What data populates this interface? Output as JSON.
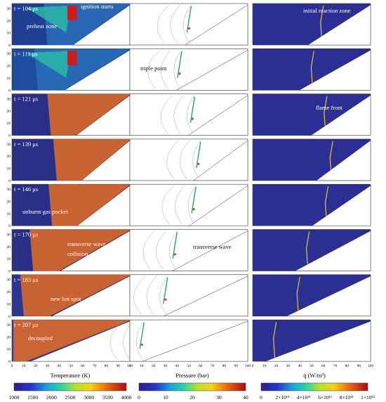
{
  "rows": [
    {
      "time": "t = 104 μs",
      "annotations": [
        {
          "col": 0,
          "text": "ignition starts"
        },
        {
          "col": 0,
          "text": "preheat zone"
        },
        {
          "col": 2,
          "text": "initial reaction zone"
        }
      ]
    },
    {
      "time": "t = 111 μs",
      "annotations": [
        {
          "col": 1,
          "text": "triple point"
        }
      ]
    },
    {
      "time": "t = 121 μs",
      "annotations": [
        {
          "col": 2,
          "text": "flame front"
        }
      ]
    },
    {
      "time": "t = 139 μs",
      "annotations": []
    },
    {
      "time": "t = 146 μs",
      "annotations": [
        {
          "col": 0,
          "text": "unburnt gas pocket"
        }
      ]
    },
    {
      "time": "t = 170 μs",
      "annotations": [
        {
          "col": 0,
          "text": "transverse wave"
        },
        {
          "col": 0,
          "text": "collision"
        },
        {
          "col": 1,
          "text": "transverse wave"
        }
      ]
    },
    {
      "time": "t = 183 μs",
      "annotations": [
        {
          "col": 0,
          "text": "new hot spot"
        }
      ]
    },
    {
      "time": "t = 207 μs",
      "annotations": [
        {
          "col": 0,
          "text": "decoupled"
        }
      ]
    }
  ],
  "axes": {
    "y_ticks": [
      "0",
      "10",
      "20",
      "30"
    ],
    "x_ticks": [
      "0",
      "10",
      "20",
      "30",
      "40",
      "50",
      "60",
      "70",
      "80",
      "90",
      "100"
    ]
  },
  "colorbars": [
    {
      "title": "Temperature (K)",
      "ticks": [
        "1000",
        "1500",
        "2000",
        "2500",
        "3000",
        "3500",
        "4000"
      ]
    },
    {
      "title": "Pressure (bar)",
      "ticks": [
        "0",
        "10",
        "20",
        "30",
        "40"
      ]
    },
    {
      "title": "q̇ (W/m³)",
      "ticks": [
        "0",
        "2×10¹¹",
        "4×10¹¹",
        "6×10¹¹",
        "8×10¹¹",
        "1×10¹²"
      ]
    }
  ],
  "colors": {
    "jet_start": "#2a1f8f",
    "jet_end": "#a50f15",
    "background": "#ffffff"
  }
}
